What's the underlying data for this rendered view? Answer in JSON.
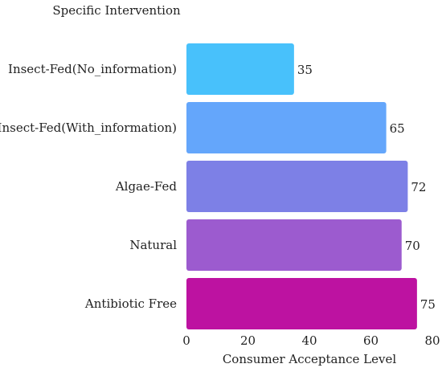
{
  "chart_data": {
    "type": "bar",
    "orientation": "horizontal",
    "categories": [
      "Insect-Fed(No_information)",
      "Insect-Fed(With_information)",
      "Algae-Fed",
      "Natural",
      "Antibiotic Free"
    ],
    "values": [
      35,
      65,
      72,
      70,
      75
    ],
    "colors": [
      "#48c1fb",
      "#64a6fb",
      "#7d80e6",
      "#9c5bcf",
      "#bd12a1"
    ],
    "ylabel": "Specific Intervention",
    "xlabel": "Consumer Acceptance Level",
    "xlim": [
      0,
      80
    ],
    "xticks": [
      0,
      20,
      40,
      60,
      80
    ],
    "grid": false,
    "legend": "none",
    "data_labels": true
  }
}
